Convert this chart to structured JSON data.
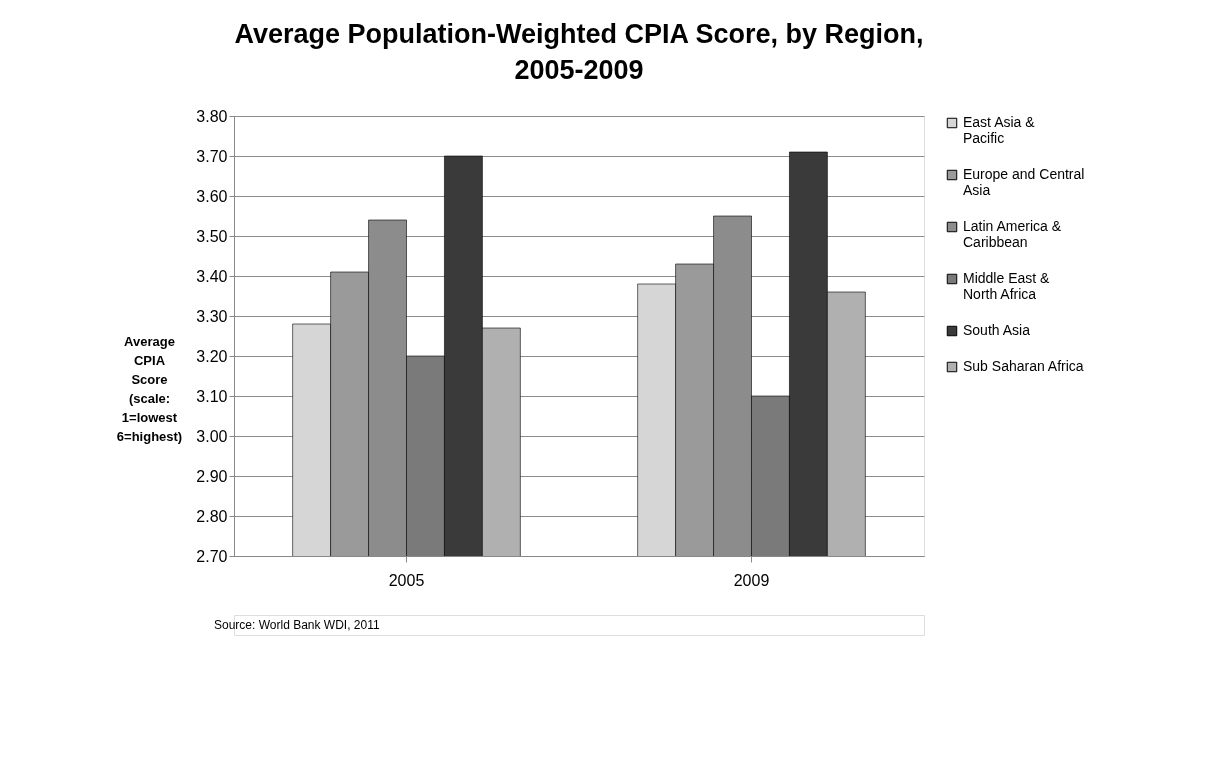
{
  "chart_data": {
    "type": "bar",
    "title": "Average Population-Weighted CPIA Score, by Region, 2005-2009",
    "ylabel": "Average CPIA Score (scale: 1=lowest 6=highest)",
    "categories": [
      "2005",
      "2009"
    ],
    "series": [
      {
        "name": "East Asia & Pacific",
        "color": "#d6d6d6",
        "values": [
          3.28,
          3.38
        ]
      },
      {
        "name": "Europe and Central Asia",
        "color": "#9a9a9a",
        "values": [
          3.41,
          3.43
        ]
      },
      {
        "name": "Latin America & Caribbean",
        "color": "#8c8c8c",
        "values": [
          3.54,
          3.55
        ]
      },
      {
        "name": "Middle East & North Africa",
        "color": "#7a7a7a",
        "values": [
          3.2,
          3.1
        ]
      },
      {
        "name": "South Asia",
        "color": "#3a3a3a",
        "values": [
          3.7,
          3.71
        ]
      },
      {
        "name": "Sub Saharan Africa",
        "color": "#b0b0b0",
        "values": [
          3.27,
          3.36
        ]
      }
    ],
    "ylim": [
      2.7,
      3.8
    ],
    "yticks": [
      {
        "value": 2.7,
        "label": "2.70"
      },
      {
        "value": 2.8,
        "label": "2.80"
      },
      {
        "value": 2.9,
        "label": "2.90"
      },
      {
        "value": 3.0,
        "label": "3.00"
      },
      {
        "value": 3.1,
        "label": "3.10"
      },
      {
        "value": 3.2,
        "label": "3.20"
      },
      {
        "value": 3.3,
        "label": "3.30"
      },
      {
        "value": 3.4,
        "label": "3.40"
      },
      {
        "value": 3.5,
        "label": "3.50"
      },
      {
        "value": 3.6,
        "label": "3.60"
      },
      {
        "value": 3.7,
        "label": "3.70"
      },
      {
        "value": 3.8,
        "label": "3.80"
      }
    ],
    "grid": "y",
    "legend": "right",
    "annotations": [
      "Source: World Bank WDI, 2011"
    ]
  }
}
